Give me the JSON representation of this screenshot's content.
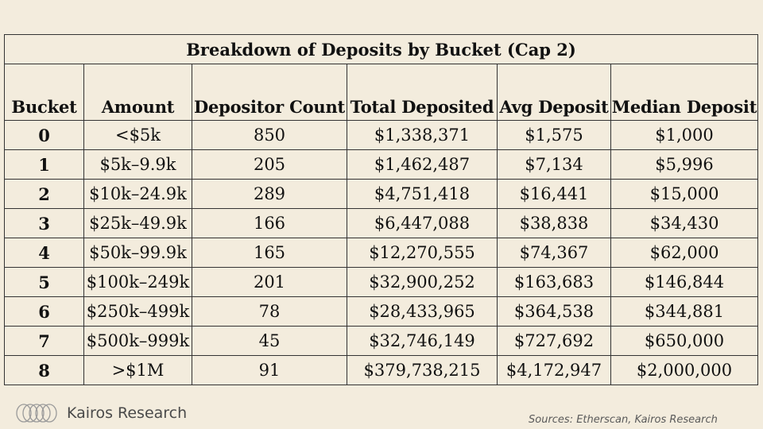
{
  "table": {
    "title": "Breakdown of Deposits by Bucket (Cap 2)",
    "headers": [
      "Bucket",
      "Amount",
      "Depositor Count",
      "Total Deposited",
      "Avg Deposit",
      "Median Deposit"
    ],
    "rows": [
      [
        "0",
        "<$5k",
        "850",
        "$1,338,371",
        "$1,575",
        "$1,000"
      ],
      [
        "1",
        "$5k–9.9k",
        "205",
        "$1,462,487",
        "$7,134",
        "$5,996"
      ],
      [
        "2",
        "$10k–24.9k",
        "289",
        "$4,751,418",
        "$16,441",
        "$15,000"
      ],
      [
        "3",
        "$25k–49.9k",
        "166",
        "$6,447,088",
        "$38,838",
        "$34,430"
      ],
      [
        "4",
        "$50k–99.9k",
        "165",
        "$12,270,555",
        "$74,367",
        "$62,000"
      ],
      [
        "5",
        "$100k–249k",
        "201",
        "$32,900,252",
        "$163,683",
        "$146,844"
      ],
      [
        "6",
        "$250k–499k",
        "78",
        "$28,433,965",
        "$364,538",
        "$344,881"
      ],
      [
        "7",
        "$500k–999k",
        "45",
        "$32,746,149",
        "$727,692",
        "$650,000"
      ],
      [
        "8",
        ">$1M",
        "91",
        "$379,738,215",
        "$4,172,947",
        "$2,000,000"
      ]
    ]
  },
  "footer": {
    "brand": "Kairos Research",
    "logo_icon": "kairos-rings-logo",
    "sources": "Sources: Etherscan, Kairos Research"
  },
  "colors": {
    "background": "#f3ecdd",
    "border": "#333333",
    "text": "#111111"
  }
}
